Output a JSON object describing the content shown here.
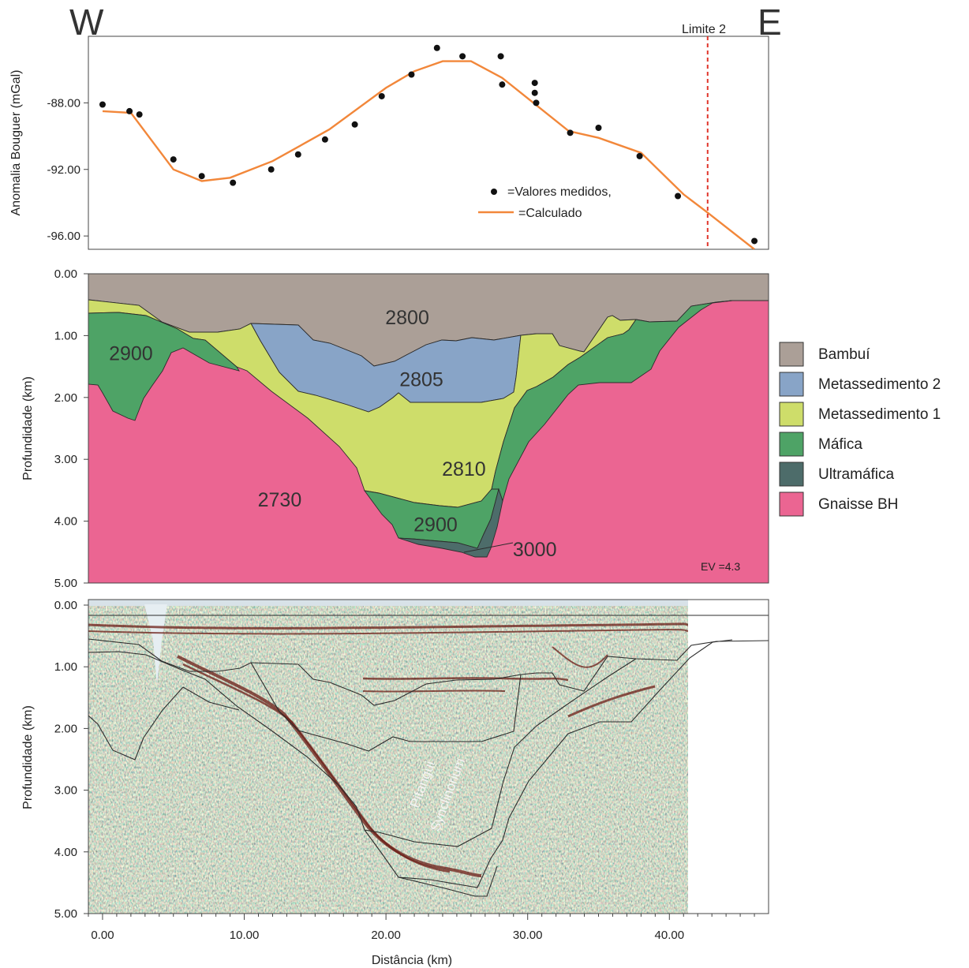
{
  "chart_data": [
    {
      "type": "scatter",
      "title": "",
      "corner_labels": {
        "west": "W",
        "east": "E"
      },
      "ylabel": "Anomalia Bouguer (mGal)",
      "ylim": [
        -96.8,
        -84.0
      ],
      "xlim": [
        -1,
        47
      ],
      "yticks": [
        "-88.00",
        "-92.00",
        "-96.00"
      ],
      "ytick_values": [
        -88,
        -92,
        -96
      ],
      "marker_line": {
        "label": "Limite 2",
        "x": 42.7,
        "color": "#e0352b"
      },
      "legend": {
        "measured": "=Valores medidos,",
        "calculated": "=Calculado",
        "placement": "lower-right"
      },
      "series": [
        {
          "name": "=Valores medidos,",
          "x": [
            0.0,
            1.9,
            2.6,
            5.0,
            7.0,
            9.2,
            11.9,
            13.8,
            15.7,
            17.8,
            19.7,
            21.8,
            23.6,
            25.4,
            28.1,
            28.2,
            30.5,
            30.5,
            30.6,
            33.0,
            35.0,
            37.9,
            40.6,
            46.0
          ],
          "y": [
            -88.1,
            -88.5,
            -88.7,
            -91.4,
            -92.4,
            -92.8,
            -92.0,
            -91.1,
            -90.2,
            -89.3,
            -87.6,
            -86.3,
            -84.7,
            -85.2,
            -85.2,
            -86.9,
            -86.8,
            -87.4,
            -88.0,
            -89.8,
            -89.5,
            -91.2,
            -93.6,
            -96.3
          ],
          "color": "#111111"
        },
        {
          "name": "=Calculado",
          "x": [
            0.0,
            2.0,
            5.0,
            7.0,
            9.0,
            12.0,
            16.0,
            20.0,
            22.0,
            24.0,
            26.0,
            28.2,
            32.9,
            35.0,
            38.0,
            41.0,
            42.7,
            46.0
          ],
          "y": [
            -88.5,
            -88.6,
            -92.0,
            -92.7,
            -92.5,
            -91.5,
            -89.6,
            -87.1,
            -86.1,
            -85.5,
            -85.5,
            -86.5,
            -89.7,
            -90.1,
            -91.0,
            -93.5,
            -94.6,
            -96.8
          ],
          "color": "#f2873a"
        }
      ]
    },
    {
      "type": "area",
      "title": "",
      "xlim": [
        -1,
        47
      ],
      "ylim": [
        5.0,
        0.0
      ],
      "ylabel": "Profundidade (km)",
      "yticks": [
        "0.00",
        "1.00",
        "2.00",
        "3.00",
        "4.00",
        "5.00"
      ],
      "ytick_values": [
        0,
        1,
        2,
        3,
        4,
        5
      ],
      "annotation": "EV =4.3",
      "legend": [
        {
          "name": "Bambuí",
          "color": "#ab9f97"
        },
        {
          "name": "Metassedimento 2",
          "color": "#88a4c7"
        },
        {
          "name": "Metassedimento 1",
          "color": "#cedd6a"
        },
        {
          "name": "Máfica",
          "color": "#4ea366"
        },
        {
          "name": "Ultramáfica",
          "color": "#4d6c6a"
        },
        {
          "name": "Gnaisse BH",
          "color": "#eb6592"
        }
      ],
      "densities": [
        {
          "label": "2800",
          "x": 21.5,
          "y": 0.7
        },
        {
          "label": "2805",
          "x": 22.5,
          "y": 1.7
        },
        {
          "label": "2900",
          "x": 2.0,
          "y": 1.28
        },
        {
          "label": "2810",
          "x": 25.5,
          "y": 3.15
        },
        {
          "label": "2730",
          "x": 12.5,
          "y": 3.65
        },
        {
          "label": "2900",
          "x": 23.5,
          "y": 4.05
        },
        {
          "label": "3000",
          "x": 30.5,
          "y": 4.45
        }
      ]
    },
    {
      "type": "image",
      "title": "",
      "xlim": [
        -1,
        47
      ],
      "ylim": [
        5.0,
        0.0
      ],
      "xlabel": "Distância (km)",
      "ylabel": "Profundidade (km)",
      "xticks": [
        "0.00",
        "10.00",
        "20.00",
        "30.00",
        "40.00"
      ],
      "xtick_values": [
        0,
        10,
        20,
        30,
        40
      ],
      "yticks": [
        "0.00",
        "1.00",
        "2.00",
        "3.00",
        "4.00",
        "5.00"
      ],
      "ytick_values": [
        0,
        1,
        2,
        3,
        4,
        5
      ],
      "annotation_lines": [
        "Pitangui",
        "Synclinorium"
      ]
    }
  ]
}
